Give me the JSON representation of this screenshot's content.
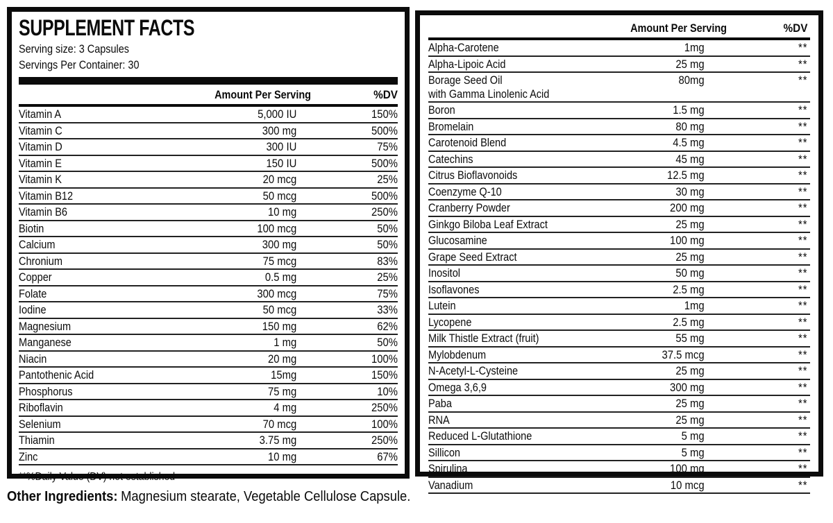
{
  "colors": {
    "ink": "#0b0b0b",
    "rule": "#222222",
    "paper": "#ffffff"
  },
  "supplement_facts": {
    "title": "SUPPLEMENT FACTS",
    "serving_size": "Serving size: 3 Capsules",
    "servings_per_container": "Servings Per Container: 30",
    "footnote": "**%Daily Value (DV) not established"
  },
  "columns": {
    "amount": "Amount Per Serving",
    "dv": "%DV"
  },
  "left_table": {
    "rows": [
      {
        "name": "Vitamin A",
        "amount": "5,000 IU",
        "dv": "150%"
      },
      {
        "name": "Vitamin C",
        "amount": "300 mg",
        "dv": "500%"
      },
      {
        "name": "Vitamin D",
        "amount": "300 IU",
        "dv": "75%"
      },
      {
        "name": "Vitamin E",
        "amount": "150 IU",
        "dv": "500%"
      },
      {
        "name": "Vitamin K",
        "amount": "20 mcg",
        "dv": "25%"
      },
      {
        "name": "Vitamin B12",
        "amount": "50 mcg",
        "dv": "500%"
      },
      {
        "name": "Vitamin B6",
        "amount": "10 mg",
        "dv": "250%"
      },
      {
        "name": "Biotin",
        "amount": "100 mcg",
        "dv": "50%"
      },
      {
        "name": "Calcium",
        "amount": "300 mg",
        "dv": "50%"
      },
      {
        "name": "Chronium",
        "amount": "75 mcg",
        "dv": "83%"
      },
      {
        "name": "Copper",
        "amount": "0.5 mg",
        "dv": "25%"
      },
      {
        "name": "Folate",
        "amount": "300 mcg",
        "dv": "75%"
      },
      {
        "name": "Iodine",
        "amount": "50 mcg",
        "dv": "33%"
      },
      {
        "name": "Magnesium",
        "amount": "150 mg",
        "dv": "62%"
      },
      {
        "name": "Manganese",
        "amount": "1 mg",
        "dv": "50%"
      },
      {
        "name": "Niacin",
        "amount": "20 mg",
        "dv": "100%"
      },
      {
        "name": "Pantothenic Acid",
        "amount": "15mg",
        "dv": "150%"
      },
      {
        "name": "Phosphorus",
        "amount": "75 mg",
        "dv": "10%"
      },
      {
        "name": "Riboflavin",
        "amount": "4 mg",
        "dv": "250%"
      },
      {
        "name": "Selenium",
        "amount": "70 mcg",
        "dv": "100%"
      },
      {
        "name": "Thiamin",
        "amount": "3.75 mg",
        "dv": "250%"
      },
      {
        "name": "Zinc",
        "amount": "10 mg",
        "dv": "67%"
      }
    ]
  },
  "right_table": {
    "rows": [
      {
        "name": "Alpha-Carotene",
        "amount": "1mg",
        "dv": "**"
      },
      {
        "name": "Alpha-Lipoic Acid",
        "amount": "25 mg",
        "dv": "**"
      },
      {
        "name": "Borage Seed Oil",
        "name_line2": "with Gamma Linolenic Acid",
        "amount": "80mg",
        "dv": "**"
      },
      {
        "name": "Boron",
        "amount": "1.5 mg",
        "dv": "**"
      },
      {
        "name": "Bromelain",
        "amount": "80 mg",
        "dv": "**"
      },
      {
        "name": "Carotenoid Blend",
        "amount": "4.5 mg",
        "dv": "**"
      },
      {
        "name": "Catechins",
        "amount": "45 mg",
        "dv": "**"
      },
      {
        "name": "Citrus Bioflavonoids",
        "amount": "12.5 mg",
        "dv": "**"
      },
      {
        "name": "Coenzyme Q-10",
        "amount": "30 mg",
        "dv": "**"
      },
      {
        "name": "Cranberry Powder",
        "amount": "200 mg",
        "dv": "**"
      },
      {
        "name": "Ginkgo Biloba Leaf Extract",
        "amount": "25 mg",
        "dv": "**"
      },
      {
        "name": "Glucosamine",
        "amount": "100 mg",
        "dv": "**"
      },
      {
        "name": "Grape Seed Extract",
        "amount": "25 mg",
        "dv": "**"
      },
      {
        "name": "Inositol",
        "amount": "50 mg",
        "dv": "**"
      },
      {
        "name": "Isoflavones",
        "amount": "2.5 mg",
        "dv": "**"
      },
      {
        "name": "Lutein",
        "amount": "1mg",
        "dv": "**"
      },
      {
        "name": "Lycopene",
        "amount": "2.5 mg",
        "dv": "**"
      },
      {
        "name": "Milk Thistle Extract (fruit)",
        "amount": "55 mg",
        "dv": "**"
      },
      {
        "name": "Mylobdenum",
        "amount": "37.5 mcg",
        "dv": "**"
      },
      {
        "name": "N-Acetyl-L-Cysteine",
        "amount": "25 mg",
        "dv": "**"
      },
      {
        "name": "Omega 3,6,9",
        "amount": "300 mg",
        "dv": "**"
      },
      {
        "name": "Paba",
        "amount": "25 mg",
        "dv": "**"
      },
      {
        "name": "RNA",
        "amount": "25 mg",
        "dv": "**"
      },
      {
        "name": "Reduced L-Glutathione",
        "amount": "5 mg",
        "dv": "**"
      },
      {
        "name": "Sillicon",
        "amount": "5 mg",
        "dv": "**"
      },
      {
        "name": "Spirulina",
        "amount": "100 mg",
        "dv": "**"
      },
      {
        "name": "Vanadium",
        "amount": "10 mcg",
        "dv": "**"
      }
    ]
  },
  "other_ingredients": {
    "label": "Other Ingredients:",
    "text": "Magnesium stearate, Vegetable Cellulose Capsule."
  }
}
